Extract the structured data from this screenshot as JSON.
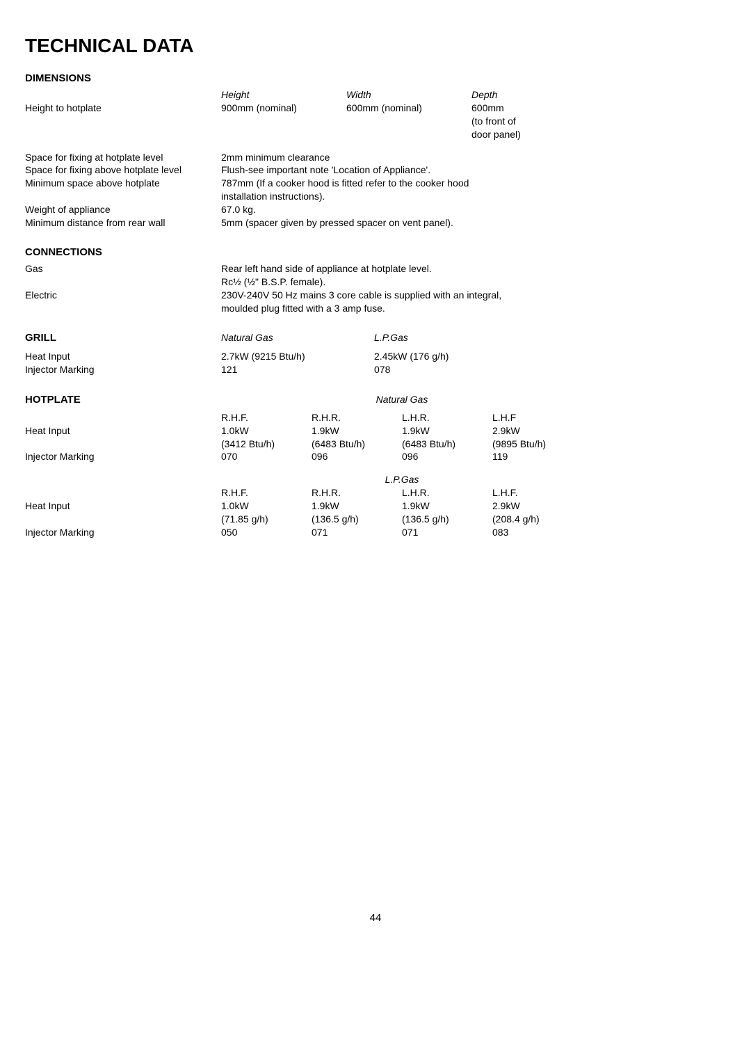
{
  "page_title": "TECHNICAL DATA",
  "page_number": "44",
  "dimensions": {
    "title": "DIMENSIONS",
    "headers": {
      "h": "Height",
      "w": "Width",
      "d": "Depth"
    },
    "hotplate": {
      "label": "Height to hotplate",
      "h": "900mm (nominal)",
      "w": "600mm (nominal)",
      "d1": "600mm",
      "d2": "(to front of",
      "d3": "door panel)"
    },
    "specs": [
      {
        "label": "Space for fixing at hotplate level",
        "value": "2mm minimum clearance"
      },
      {
        "label": "Space for fixing above hotplate level",
        "value": "Flush-see important note 'Location of Appliance'."
      },
      {
        "label": "Minimum space above hotplate",
        "value": "787mm (If a cooker hood is fitted refer to the cooker hood"
      },
      {
        "label": "",
        "value": "installation instructions)."
      },
      {
        "label": "Weight of appliance",
        "value": "67.0 kg."
      },
      {
        "label": "Minimum distance from rear wall",
        "value": "5mm (spacer given by pressed spacer on vent panel)."
      }
    ]
  },
  "connections": {
    "title": "CONNECTIONS",
    "rows": [
      {
        "label": "Gas",
        "value": "Rear left  hand side of appliance at  hotplate level."
      },
      {
        "label": "",
        "value": "Rc½ (½\" B.S.P. female)."
      },
      {
        "label": "Electric",
        "value": "230V-240V 50 Hz mains 3 core cable is supplied with an integral,"
      },
      {
        "label": "",
        "value": "moulded plug fitted with a 3 amp fuse."
      }
    ]
  },
  "grill": {
    "title": "GRILL",
    "header": {
      "c1": "Natural Gas",
      "c2": "L.P.Gas"
    },
    "rows": [
      {
        "label": "Heat Input",
        "c1": "2.7kW (9215 Btu/h)",
        "c2": "2.45kW (176 g/h)"
      },
      {
        "label": "Injector Marking",
        "c1": "121",
        "c2": "078"
      }
    ]
  },
  "hotplate": {
    "title": "HOTPLATE",
    "ng": {
      "header": "Natural Gas",
      "cols": [
        "R.H.F.",
        "R.H.R.",
        "L.H.R.",
        "L.H.F"
      ],
      "rows": [
        {
          "label": "Heat Input",
          "c": [
            "1.0kW",
            "1.9kW",
            "1.9kW",
            "2.9kW"
          ]
        },
        {
          "label": "",
          "c": [
            "(3412 Btu/h)",
            "(6483 Btu/h)",
            "(6483 Btu/h)",
            "(9895 Btu/h)"
          ]
        },
        {
          "label": "Injector Marking",
          "c": [
            "070",
            "096",
            "096",
            "119"
          ]
        }
      ]
    },
    "lpg": {
      "header": "L.P.Gas",
      "cols": [
        "R.H.F.",
        "R.H.R.",
        "L.H.R.",
        "L.H.F."
      ],
      "rows": [
        {
          "label": "Heat Input",
          "c": [
            "1.0kW",
            "1.9kW",
            "1.9kW",
            "2.9kW"
          ]
        },
        {
          "label": "",
          "c": [
            "(71.85 g/h)",
            "(136.5 g/h)",
            "(136.5 g/h)",
            "(208.4 g/h)"
          ]
        },
        {
          "label": "Injector Marking",
          "c": [
            "050",
            "071",
            "071",
            "083"
          ]
        }
      ]
    }
  }
}
